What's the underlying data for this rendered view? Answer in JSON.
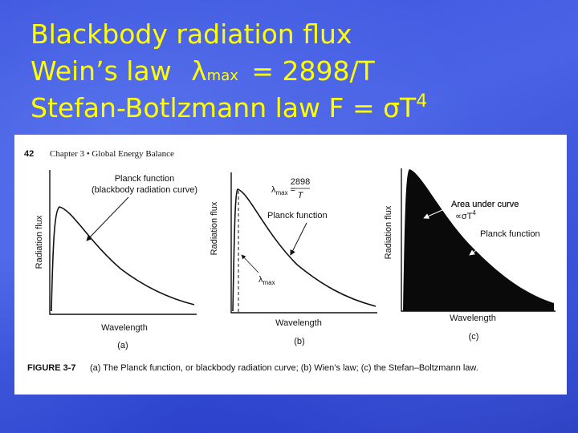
{
  "title": {
    "line1": "Blackbody radiation flux",
    "line2": {
      "text": "Wein’s law",
      "symbol": "λ",
      "subscript": "max",
      "equation": "= 2898/T"
    },
    "line3": {
      "text": "Stefan-Botlzmann law F = σT",
      "superscript": "4"
    }
  },
  "figure": {
    "page_number": "42",
    "running_head": "Chapter 3 • Global Energy Balance",
    "panels": [
      {
        "y_label": "Radiation flux",
        "x_label": "Wavelength",
        "letter": "(a)",
        "curve_label": [
          "Planck function",
          "(blackbody radiation curve)"
        ]
      },
      {
        "y_label": "Radiation flux",
        "x_label": "Wavelength",
        "letter": "(b)",
        "curve_label": "Planck function",
        "equation": {
          "symbol": "λ",
          "subscript": "max",
          "equals": "=",
          "numerator": "2898",
          "denominator": "T"
        },
        "marker": {
          "symbol": "λ",
          "subscript": "max"
        }
      },
      {
        "y_label": "Radiation flux",
        "x_label": "Wavelength",
        "letter": "(c)",
        "curve_label": "Planck function",
        "area_label": "Area under curve",
        "area_formula": {
          "text": "∝σT",
          "superscript": "4"
        }
      }
    ],
    "caption": {
      "label": "FIGURE 3-7",
      "text": "(a) The Planck function, or blackbody radiation curve; (b) Wien’s law; (c) the Stefan–Boltzmann law."
    }
  }
}
